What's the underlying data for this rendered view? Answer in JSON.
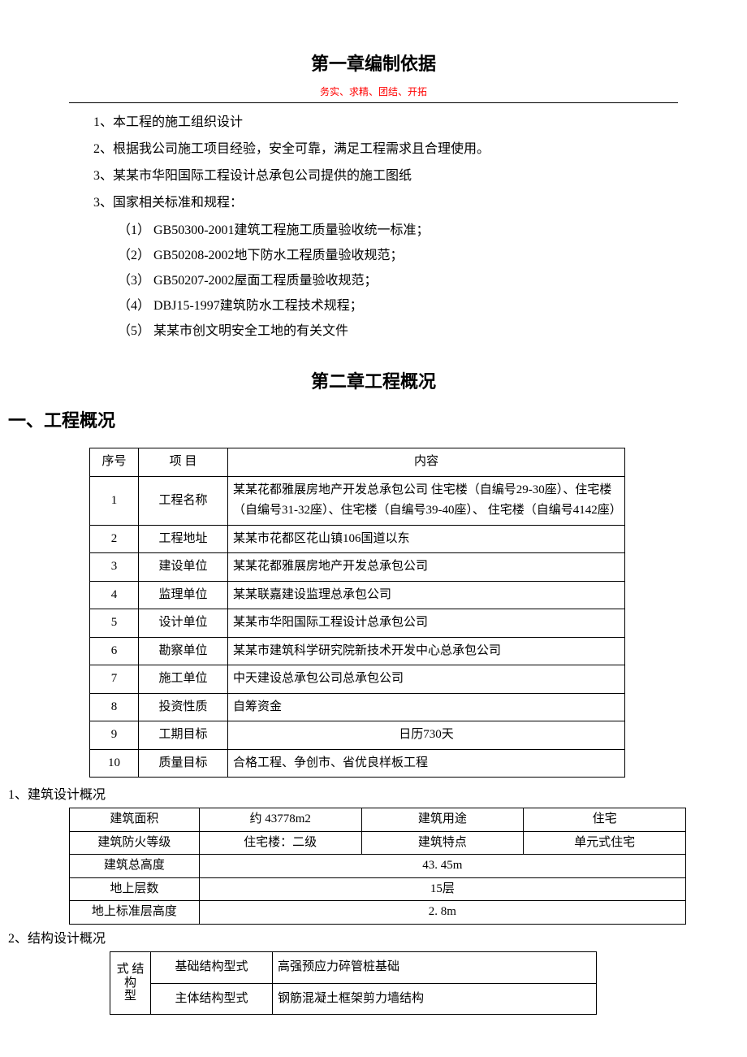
{
  "chapter1": {
    "title": "第一章编制依据",
    "motto": "务实、求精、团结、开拓",
    "items": [
      "1、本工程的施工组织设计",
      "2、根据我公司施工项目经验，安全可靠，满足工程需求且合理使用。",
      "3、某某市华阳国际工程设计总承包公司提供的施工图纸",
      "3、国家相关标准和规程："
    ],
    "subitems": [
      "（1） GB50300-2001建筑工程施工质量验收统一标准；",
      "（2） GB50208-2002地下防水工程质量验收规范；",
      "（3） GB50207-2002屋面工程质量验收规范；",
      "（4） DBJ15-1997建筑防水工程技术规程；",
      "（5） 某某市创文明安全工地的有关文件"
    ]
  },
  "chapter2": {
    "title": "第二章工程概况",
    "section_heading": "一、工程概况",
    "table1": {
      "headers": [
        "序号",
        "项 目",
        "内容"
      ],
      "rows": [
        {
          "seq": "1",
          "item": "工程名称",
          "content": "某某花都雅展房地产开发总承包公司 住宅楼（自编号29-30座）、住宅楼（自编号31-32座）、住宅楼（自编号39-40座）、 住宅楼（自编号4142座）"
        },
        {
          "seq": "2",
          "item": "工程地址",
          "content": "某某市花都区花山镇106国道以东"
        },
        {
          "seq": "3",
          "item": "建设单位",
          "content": "某某花都雅展房地产开发总承包公司"
        },
        {
          "seq": "4",
          "item": "监理单位",
          "content": "某某联嘉建设监理总承包公司"
        },
        {
          "seq": "5",
          "item": "设计单位",
          "content": "某某市华阳国际工程设计总承包公司"
        },
        {
          "seq": "6",
          "item": "勘察单位",
          "content": "某某市建筑科学研究院新技术开发中心总承包公司"
        },
        {
          "seq": "7",
          "item": "施工单位",
          "content": "中天建设总承包公司总承包公司"
        },
        {
          "seq": "8",
          "item": "投资性质",
          "content": "自筹资金"
        },
        {
          "seq": "9",
          "item": "工期目标",
          "content": "日历730天",
          "center": true
        },
        {
          "seq": "10",
          "item": "质量目标",
          "content": "合格工程、争创市、省优良样板工程"
        }
      ]
    },
    "sub1_heading": "1、建筑设计概况",
    "table2": {
      "rows": [
        [
          "建筑面积",
          "约  43778m2",
          "建筑用途",
          "住宅"
        ],
        [
          "建筑防火等级",
          "住宅楼：二级",
          "建筑特点",
          "单元式住宅"
        ]
      ],
      "full_rows": [
        [
          "建筑总高度",
          "43. 45m"
        ],
        [
          "地上层数",
          "15层"
        ],
        [
          "地上标准层高度",
          "2. 8m"
        ]
      ]
    },
    "sub2_heading": "2、结构设计概况",
    "table3": {
      "vertical_label_top": "式 结",
      "vertical_label_mid": "构",
      "vertical_label_bot": "型",
      "row1": {
        "label": "基础结构型式",
        "content": "高强预应力碎管桩基础"
      },
      "row2": {
        "label": "主体结构型式",
        "content": "钢筋混凝土框架剪力墙结构"
      }
    }
  }
}
